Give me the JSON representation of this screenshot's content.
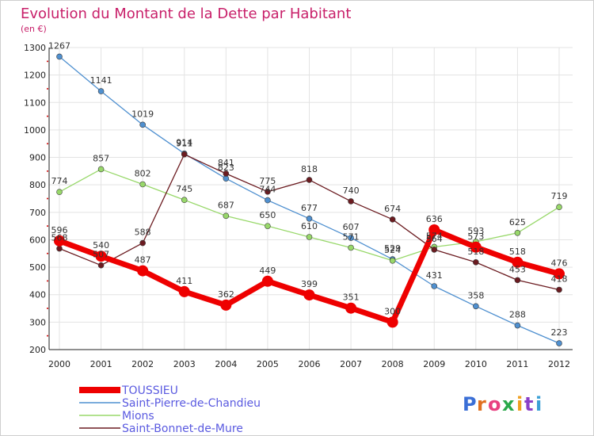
{
  "chart_data": {
    "type": "line",
    "title": "Evolution du Montant de la Dette par Habitant",
    "unit_label": "(en €)",
    "x": [
      "2000",
      "2001",
      "2002",
      "2003",
      "2004",
      "2005",
      "2006",
      "2007",
      "2008",
      "2009",
      "2010",
      "2011",
      "2012"
    ],
    "ylim": [
      200,
      1300
    ],
    "yticks": [
      200,
      300,
      400,
      500,
      600,
      700,
      800,
      900,
      1000,
      1100,
      1200,
      1300
    ],
    "grid": true,
    "legend_position": "bottom-left",
    "series": [
      {
        "name": "Saint-Pierre-de-Chandieu",
        "color": "#4f90d0",
        "values": [
          1267,
          1141,
          1019,
          914,
          823,
          744,
          677,
          607,
          529,
          431,
          358,
          288,
          223
        ]
      },
      {
        "name": "Mions",
        "color": "#98d86a",
        "values": [
          774,
          857,
          802,
          745,
          687,
          650,
          610,
          571,
          524,
          574,
          593,
          625,
          719
        ]
      },
      {
        "name": "Saint-Bonnet-de-Mure",
        "color": "#6b1b20",
        "values": [
          568,
          507,
          588,
          911,
          841,
          775,
          818,
          740,
          674,
          564,
          518,
          453,
          418
        ]
      },
      {
        "name": "TOUSSIEU",
        "color": "#ee0000",
        "values": [
          596,
          540,
          487,
          411,
          362,
          449,
          399,
          351,
          300,
          636,
          573,
          518,
          476
        ]
      }
    ],
    "legend_order": [
      "TOUSSIEU",
      "Saint-Pierre-de-Chandieu",
      "Mions",
      "Saint-Bonnet-de-Mure"
    ]
  },
  "logo": {
    "text": "Proxiti"
  }
}
